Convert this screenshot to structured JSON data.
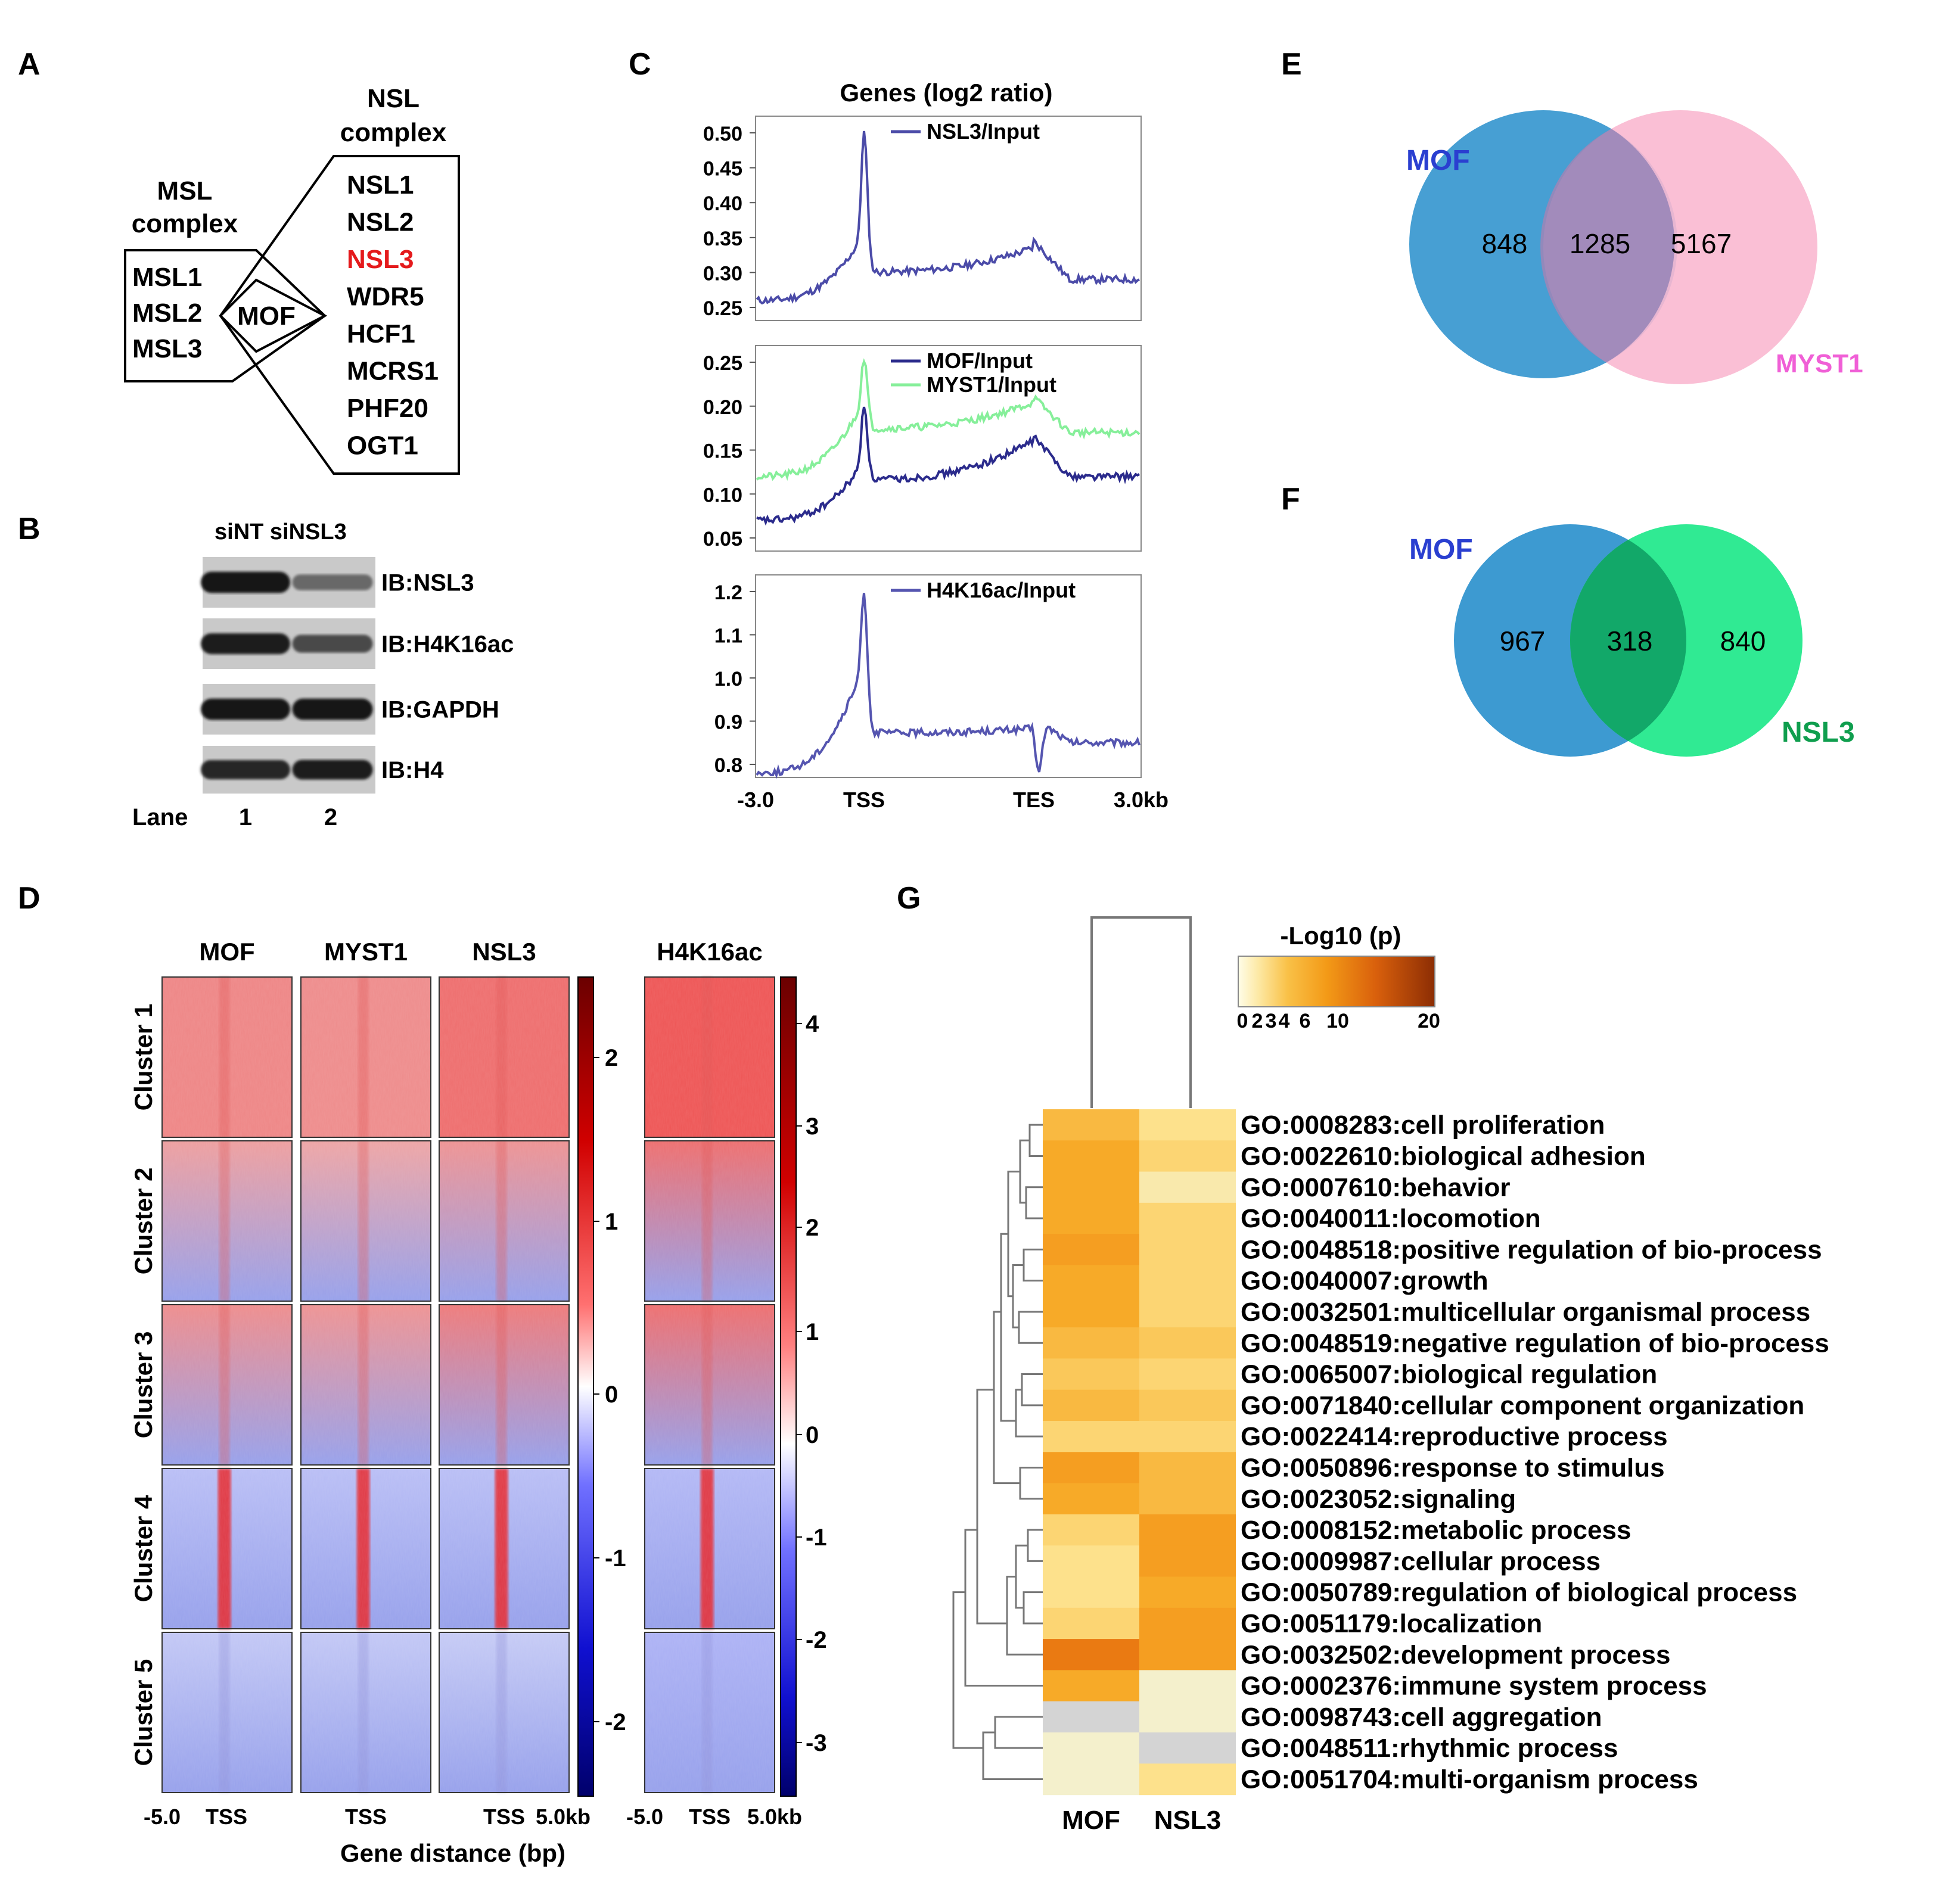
{
  "panels": {
    "A": "A",
    "B": "B",
    "C": "C",
    "D": "D",
    "E": "E",
    "F": "F",
    "G": "G"
  },
  "panel_a": {
    "msl_title": [
      "MSL",
      "complex"
    ],
    "nsl_title": [
      "NSL",
      "complex"
    ],
    "msl_members": [
      "MSL1",
      "MSL2",
      "MSL3"
    ],
    "hub": "MOF",
    "nsl_members": [
      "NSL1",
      "NSL2",
      "NSL3",
      "WDR5",
      "HCF1",
      "MCRS1",
      "PHF20",
      "OGT1"
    ],
    "highlight_member": "NSL3",
    "highlight_color": "#e41a1c"
  },
  "panel_b": {
    "header": "siNT siNSL3",
    "blots": [
      "IB:NSL3",
      "IB:H4K16ac",
      "IB:GAPDH",
      "IB:H4"
    ],
    "band_intensity": [
      [
        1.0,
        0.35
      ],
      [
        0.95,
        0.6
      ],
      [
        1.0,
        1.0
      ],
      [
        0.9,
        0.95
      ]
    ],
    "lane_label": "Lane",
    "lanes": [
      "1",
      "2"
    ]
  },
  "panel_c": {
    "title": "Genes (log2 ratio)",
    "x_ticks": [
      "-3.0",
      "TSS",
      "TES",
      "3.0kb"
    ],
    "subplots": [
      {
        "yticks": [
          "0.50",
          "0.45",
          "0.40",
          "0.35",
          "0.30",
          "0.25"
        ],
        "ymin": 0.24,
        "ymax": 0.52,
        "series": [
          {
            "name": "NSL3/Input",
            "color": "#4b4ba8",
            "base": 0.26,
            "peak": 0.51,
            "body": 0.31,
            "tes": 0.345,
            "tail": 0.29
          }
        ]
      },
      {
        "yticks": [
          "0.25",
          "0.20",
          "0.15",
          "0.10",
          "0.05"
        ],
        "ymin": 0.04,
        "ymax": 0.27,
        "series": [
          {
            "name": "MOF/Input",
            "color": "#2b2b8c",
            "base": 0.07,
            "peak": 0.205,
            "body": 0.12,
            "tes": 0.165,
            "tail": 0.12
          },
          {
            "name": "MYST1/Input",
            "color": "#86ef9a",
            "base": 0.12,
            "peak": 0.26,
            "body": 0.18,
            "tes": 0.21,
            "tail": 0.17
          }
        ]
      },
      {
        "yticks": [
          "1.2",
          "1.1",
          "1.0",
          "0.9",
          "0.8"
        ],
        "ymin": 0.75,
        "ymax": 1.27,
        "series": [
          {
            "name": "H4K16ac/Input",
            "color": "#5555b0",
            "base": 0.78,
            "peak": 1.22,
            "body": 0.9,
            "tes": 0.91,
            "tail": 0.85,
            "dip": 0.79
          }
        ]
      }
    ]
  },
  "panel_d": {
    "columns": [
      "MOF",
      "MYST1",
      "NSL3",
      "H4K16ac"
    ],
    "clusters": [
      "Cluster 1",
      "Cluster 2",
      "Cluster 3",
      "Cluster 4",
      "Cluster 5"
    ],
    "colorbar1_ticks": [
      "2",
      "1",
      "0",
      "-1",
      "-2"
    ],
    "colorbar2_ticks": [
      "4",
      "3",
      "2",
      "1",
      "0",
      "-1",
      "-2",
      "-3"
    ],
    "x_ticks_left": [
      "-5.0",
      "TSS",
      "TSS",
      "TSS",
      "5.0kb"
    ],
    "x_ticks_right": [
      "-5.0",
      "TSS",
      "5.0kb"
    ],
    "xlabel": "Gene distance (bp)",
    "cluster_intensity": [
      [
        0.55,
        0.5,
        0.75,
        0.95
      ],
      [
        0.35,
        0.3,
        0.45,
        0.75
      ],
      [
        0.5,
        0.45,
        0.65,
        0.75
      ],
      [
        -0.25,
        -0.25,
        -0.25,
        -0.35
      ],
      [
        -0.1,
        -0.1,
        -0.05,
        -0.45
      ]
    ]
  },
  "panel_e": {
    "left_label": "MOF",
    "right_label": "MYST1",
    "left_only": "848",
    "both": "1285",
    "right_only": "5167",
    "left_color": "#3d9ad1",
    "right_color": "#f9b8d0",
    "right_label_color": "#f05fd6"
  },
  "panel_f": {
    "left_label": "MOF",
    "right_label": "NSL3",
    "left_only": "967",
    "both": "318",
    "right_only": "840",
    "left_color": "#3d9ad1",
    "right_color": "#1ee88a",
    "right_label_color": "#0f9e4e"
  },
  "panel_g": {
    "legend_title": "-Log10 (p)",
    "legend_ticks": [
      "0",
      "2",
      "3",
      "4",
      "6",
      "10",
      "20"
    ],
    "columns": [
      "MOF",
      "NSL3"
    ],
    "terms": [
      {
        "label": "GO:0008283:cell proliferation",
        "values": [
          6,
          3
        ]
      },
      {
        "label": "GO:0022610:biological adhesion",
        "values": [
          7,
          4
        ]
      },
      {
        "label": "GO:0007610:behavior",
        "values": [
          7,
          2
        ]
      },
      {
        "label": "GO:0040011:locomotion",
        "values": [
          7,
          4
        ]
      },
      {
        "label": "GO:0048518:positive regulation of bio-process",
        "values": [
          8,
          4
        ]
      },
      {
        "label": "GO:0040007:growth",
        "values": [
          7,
          4
        ]
      },
      {
        "label": "GO:0032501:multicellular organismal process",
        "values": [
          7,
          4
        ]
      },
      {
        "label": "GO:0048519:negative regulation of bio-process",
        "values": [
          6,
          5
        ]
      },
      {
        "label": "GO:0065007:biological regulation",
        "values": [
          5,
          4
        ]
      },
      {
        "label": "GO:0071840:cellular component organization",
        "values": [
          6,
          5
        ]
      },
      {
        "label": "GO:0022414:reproductive process",
        "values": [
          4,
          4
        ]
      },
      {
        "label": "GO:0050896:response to stimulus",
        "values": [
          8,
          6
        ]
      },
      {
        "label": "GO:0023052:signaling",
        "values": [
          7,
          6
        ]
      },
      {
        "label": "GO:0008152:metabolic process",
        "values": [
          4,
          8
        ]
      },
      {
        "label": "GO:0009987:cellular process",
        "values": [
          3,
          8
        ]
      },
      {
        "label": "GO:0050789:regulation of biological process",
        "values": [
          3,
          7
        ]
      },
      {
        "label": "GO:0051179:localization",
        "values": [
          4,
          8
        ]
      },
      {
        "label": "GO:0032502:development process",
        "values": [
          11,
          8
        ]
      },
      {
        "label": "GO:0002376:immune system process",
        "values": [
          7,
          1
        ]
      },
      {
        "label": "GO:0098743:cell aggregation",
        "values": [
          null,
          1
        ]
      },
      {
        "label": "GO:0048511:rhythmic process",
        "values": [
          1,
          null
        ]
      },
      {
        "label": "GO:0051704:multi-organism process",
        "values": [
          1,
          3
        ]
      }
    ]
  }
}
